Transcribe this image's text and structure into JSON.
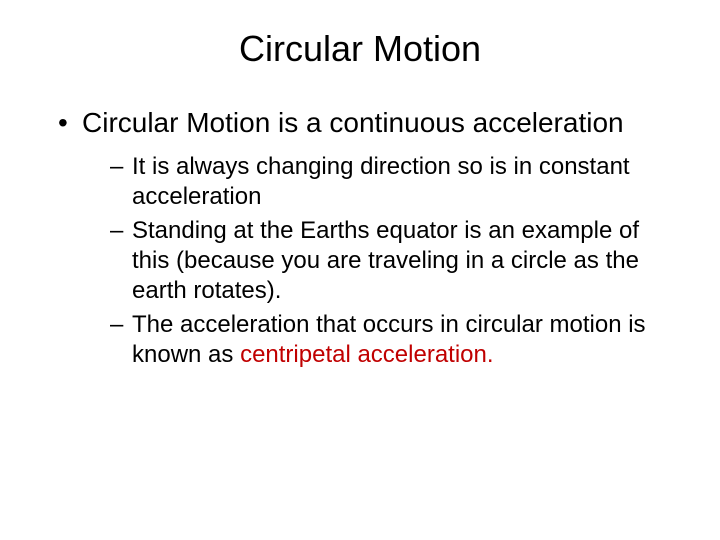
{
  "title": "Circular Motion",
  "title_fontsize": 36,
  "body_fontsize_lvl1": 28,
  "body_fontsize_lvl2": 24,
  "text_color": "#000000",
  "accent_color": "#c00000",
  "background_color": "#ffffff",
  "bullets": {
    "lvl1": [
      {
        "text": "Circular Motion is a continuous acceleration",
        "sub": [
          "It is always changing direction so is in constant acceleration",
          "Standing at the Earths equator is an example of this (because you are traveling in a circle as the earth rotates).",
          {
            "prefix": "The acceleration that occurs in circular motion is known as ",
            "highlight": "centripetal acceleration."
          }
        ]
      }
    ]
  }
}
